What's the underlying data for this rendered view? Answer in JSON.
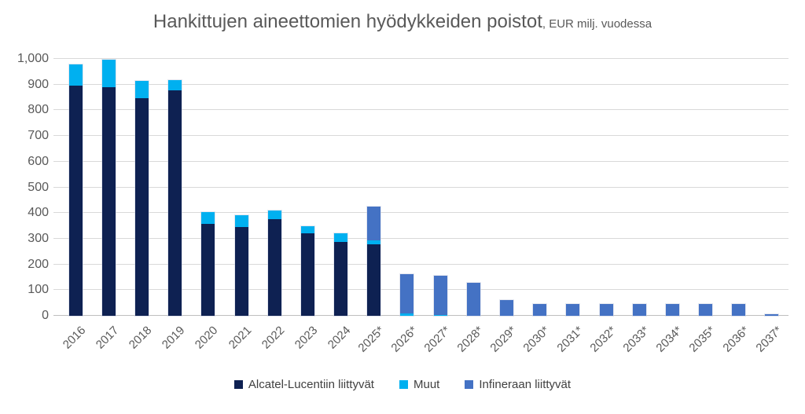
{
  "title": {
    "main": "Hankittujen aineettomien hyödykkeiden poistot",
    "suffix": ", EUR milj. vuodessa"
  },
  "colors": {
    "alcatel": "#0E2152",
    "muut": "#00B0F0",
    "infinera": "#4472C4",
    "gridline": "#D9D9D9",
    "axis_line": "#BFBFBF",
    "axis_text": "#595959",
    "title_text": "#595959",
    "legend_text": "#404040"
  },
  "chart_data": {
    "type": "bar",
    "stacked": true,
    "title": "Hankittujen aineettomien hyödykkeiden poistot",
    "subtitle": "EUR milj. vuodessa",
    "categories": [
      "2016",
      "2017",
      "2018",
      "2019",
      "2020",
      "2021",
      "2022",
      "2023",
      "2024",
      "2025*",
      "2026*",
      "2027*",
      "2028*",
      "2029*",
      "2030*",
      "2031*",
      "2032*",
      "2033*",
      "2034*",
      "2035*",
      "2036*",
      "2037*"
    ],
    "series": [
      {
        "name": "Alcatel-Lucentiin liittyvät",
        "color_key": "alcatel",
        "values": [
          895,
          890,
          848,
          878,
          357,
          345,
          376,
          322,
          289,
          278,
          0,
          0,
          0,
          0,
          0,
          0,
          0,
          0,
          0,
          0,
          0,
          0
        ]
      },
      {
        "name": "Muut",
        "color_key": "muut",
        "values": [
          85,
          108,
          67,
          41,
          48,
          45,
          34,
          28,
          31,
          17,
          10,
          4,
          0,
          0,
          0,
          0,
          0,
          0,
          0,
          0,
          0,
          0
        ]
      },
      {
        "name": "Infineraan liittyvät",
        "color_key": "infinera",
        "values": [
          0,
          0,
          0,
          0,
          0,
          0,
          0,
          0,
          0,
          130,
          152,
          152,
          128,
          60,
          45,
          45,
          45,
          45,
          45,
          45,
          45,
          7
        ]
      }
    ],
    "ylim": [
      0,
      1000
    ],
    "ytick_interval": 100,
    "ytick_labels": [
      "0",
      "100",
      "200",
      "300",
      "400",
      "500",
      "600",
      "700",
      "800",
      "900",
      "1,000"
    ],
    "grid": true,
    "legend_position": "bottom"
  }
}
